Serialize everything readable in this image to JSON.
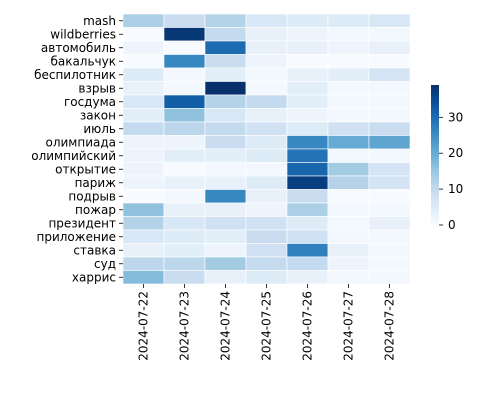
{
  "chart_data": {
    "type": "heatmap",
    "title": "",
    "xlabel": "",
    "ylabel": "",
    "x": [
      "2024-07-22",
      "2024-07-23",
      "2024-07-24",
      "2024-07-25",
      "2024-07-26",
      "2024-07-27",
      "2024-07-28"
    ],
    "y": [
      "mash",
      "wildberries",
      "автомобиль",
      "бакальчук",
      "беспилотник",
      "взрыв",
      "госдума",
      "закон",
      "июль",
      "олимпиада",
      "олимпийский",
      "открытие",
      "париж",
      "подрыв",
      "пожар",
      "президент",
      "приложение",
      "ставка",
      "суд",
      "харрис"
    ],
    "values": [
      [
        13,
        9,
        12,
        6,
        5,
        5,
        6
      ],
      [
        0,
        38,
        10,
        3,
        2,
        1,
        1
      ],
      [
        2,
        0,
        30,
        3,
        3,
        2,
        3
      ],
      [
        0,
        26,
        9,
        2,
        0,
        0,
        0
      ],
      [
        5,
        1,
        4,
        1,
        3,
        4,
        7
      ],
      [
        3,
        1,
        39,
        1,
        4,
        1,
        1
      ],
      [
        6,
        32,
        12,
        10,
        4,
        1,
        1
      ],
      [
        4,
        16,
        6,
        3,
        2,
        1,
        1
      ],
      [
        10,
        11,
        10,
        8,
        5,
        8,
        9
      ],
      [
        2,
        2,
        9,
        5,
        26,
        20,
        21
      ],
      [
        2,
        4,
        4,
        5,
        29,
        1,
        1
      ],
      [
        2,
        0,
        1,
        1,
        31,
        14,
        7
      ],
      [
        2,
        3,
        3,
        5,
        37,
        12,
        7
      ],
      [
        0,
        1,
        26,
        3,
        9,
        0,
        0
      ],
      [
        16,
        3,
        3,
        2,
        13,
        1,
        1
      ],
      [
        12,
        6,
        8,
        8,
        5,
        1,
        3
      ],
      [
        6,
        5,
        4,
        9,
        8,
        1,
        1
      ],
      [
        3,
        4,
        2,
        8,
        27,
        3,
        1
      ],
      [
        11,
        11,
        14,
        10,
        10,
        2,
        1
      ],
      [
        17,
        9,
        3,
        5,
        3,
        1,
        1
      ]
    ],
    "colorbar": {
      "min": 0,
      "max": 39,
      "ticks": [
        0,
        10,
        20,
        30
      ]
    },
    "colormap": "Blues",
    "cell_border_color": "#ffffff",
    "grid": false,
    "legend": "colorbar-right"
  }
}
